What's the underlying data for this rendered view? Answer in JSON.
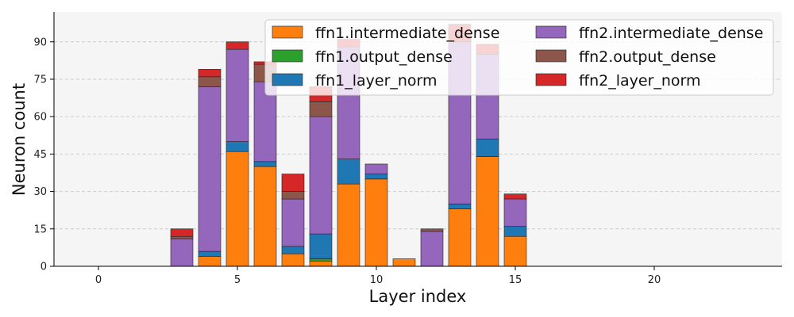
{
  "chart_data": {
    "type": "bar",
    "stacked": true,
    "title": "",
    "xlabel": "Layer index",
    "ylabel": "Neuron count",
    "xlim": [
      -1.6,
      24.6
    ],
    "ylim": [
      0,
      102
    ],
    "x": [
      3,
      4,
      5,
      6,
      7,
      8,
      9,
      10,
      11,
      12,
      13,
      14,
      15
    ],
    "x_ticks": [
      0,
      5,
      10,
      15,
      20
    ],
    "y_ticks": [
      0,
      15,
      30,
      45,
      60,
      75,
      90
    ],
    "grid": "horizontal dashed",
    "legend_position": "top-right",
    "series": [
      {
        "name": "ffn1.intermediate_dense",
        "color": "#ff7f0e",
        "values": [
          0,
          4,
          46,
          40,
          5,
          2,
          33,
          35,
          3,
          0,
          23,
          44,
          12
        ]
      },
      {
        "name": "ffn1.output_dense",
        "color": "#2ca02c",
        "values": [
          0,
          0,
          0,
          0,
          0,
          1,
          0,
          0,
          0,
          0,
          0,
          0,
          0
        ]
      },
      {
        "name": "ffn1_layer_norm",
        "color": "#1f77b4",
        "values": [
          0,
          2,
          4,
          2,
          3,
          10,
          10,
          2,
          0,
          0,
          2,
          7,
          4
        ]
      },
      {
        "name": "ffn2.intermediate_dense",
        "color": "#9467bd",
        "values": [
          11,
          66,
          37,
          32,
          19,
          47,
          45,
          4,
          0,
          14,
          65,
          34,
          11
        ]
      },
      {
        "name": "ffn2.output_dense",
        "color": "#8c564b",
        "values": [
          1,
          4,
          0,
          7,
          3,
          6,
          0,
          0,
          0,
          1,
          0,
          0,
          0
        ]
      },
      {
        "name": "ffn2_layer_norm",
        "color": "#d62728",
        "values": [
          3,
          3,
          3,
          1,
          7,
          6,
          3,
          0,
          0,
          0,
          7,
          4,
          2
        ]
      }
    ]
  }
}
